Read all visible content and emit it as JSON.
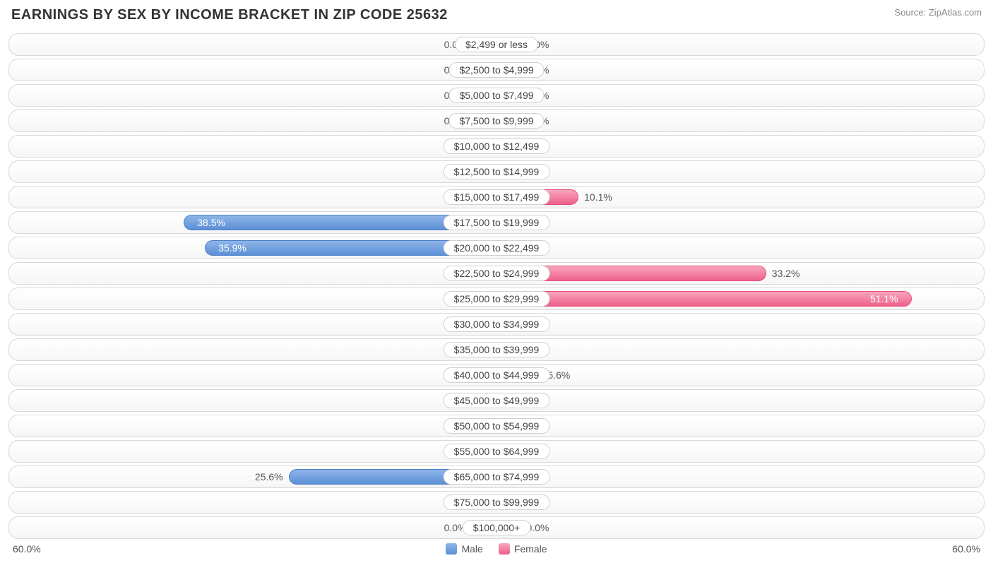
{
  "title": "EARNINGS BY SEX BY INCOME BRACKET IN ZIP CODE 25632",
  "source": "Source: ZipAtlas.com",
  "chart": {
    "type": "diverging-bar",
    "axis_max": 60.0,
    "min_bar_pct": 5.0,
    "axis_label_left": "60.0%",
    "axis_label_right": "60.0%",
    "colors": {
      "male_fill_top": "#8fb5e8",
      "male_fill_bottom": "#5b8fd6",
      "male_border": "#4a7fc6",
      "female_fill_top": "#f9a6bd",
      "female_fill_bottom": "#ee5f8a",
      "female_border": "#e84d7a",
      "row_border": "#d8d8d8",
      "text": "#555555",
      "title_text": "#333333",
      "source_text": "#888888",
      "background": "#ffffff"
    },
    "legend": {
      "male": "Male",
      "female": "Female"
    },
    "rows": [
      {
        "category": "$2,499 or less",
        "male": 0.0,
        "female": 0.0
      },
      {
        "category": "$2,500 to $4,999",
        "male": 0.0,
        "female": 0.0
      },
      {
        "category": "$5,000 to $7,499",
        "male": 0.0,
        "female": 0.0
      },
      {
        "category": "$7,500 to $9,999",
        "male": 0.0,
        "female": 0.0
      },
      {
        "category": "$10,000 to $12,499",
        "male": 0.0,
        "female": 0.0
      },
      {
        "category": "$12,500 to $14,999",
        "male": 0.0,
        "female": 0.0
      },
      {
        "category": "$15,000 to $17,499",
        "male": 0.0,
        "female": 10.1
      },
      {
        "category": "$17,500 to $19,999",
        "male": 38.5,
        "female": 0.0
      },
      {
        "category": "$20,000 to $22,499",
        "male": 35.9,
        "female": 0.0
      },
      {
        "category": "$22,500 to $24,999",
        "male": 0.0,
        "female": 33.2
      },
      {
        "category": "$25,000 to $29,999",
        "male": 0.0,
        "female": 51.1
      },
      {
        "category": "$30,000 to $34,999",
        "male": 0.0,
        "female": 0.0
      },
      {
        "category": "$35,000 to $39,999",
        "male": 0.0,
        "female": 0.0
      },
      {
        "category": "$40,000 to $44,999",
        "male": 0.0,
        "female": 5.6
      },
      {
        "category": "$45,000 to $49,999",
        "male": 0.0,
        "female": 0.0
      },
      {
        "category": "$50,000 to $54,999",
        "male": 0.0,
        "female": 0.0
      },
      {
        "category": "$55,000 to $64,999",
        "male": 0.0,
        "female": 0.0
      },
      {
        "category": "$65,000 to $74,999",
        "male": 25.6,
        "female": 0.0
      },
      {
        "category": "$75,000 to $99,999",
        "male": 0.0,
        "female": 0.0
      },
      {
        "category": "$100,000+",
        "male": 0.0,
        "female": 0.0
      }
    ]
  }
}
